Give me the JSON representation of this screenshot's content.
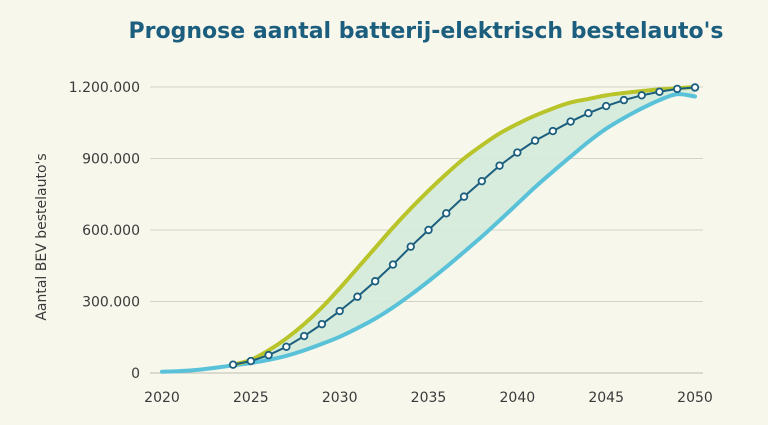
{
  "chart_data": {
    "type": "line",
    "title": "Prognose aantal batterij-elektrisch bestelauto's",
    "xlabel": "",
    "ylabel": "Aantal BEV bestelauto's",
    "xlim": [
      2020,
      2050
    ],
    "ylim": [
      0,
      1200000
    ],
    "xticks": [
      2020,
      2025,
      2030,
      2035,
      2040,
      2045,
      2050
    ],
    "xtick_labels": [
      "2020",
      "2025",
      "2030",
      "2035",
      "2040",
      "2045",
      "2050"
    ],
    "yticks": [
      0,
      300000,
      600000,
      900000,
      1200000
    ],
    "ytick_labels": [
      "0",
      "300.000",
      "600.000",
      "900.000",
      "1.200.000"
    ],
    "grid": "horizontal",
    "legend": "none",
    "band": {
      "upper_series": 0,
      "lower_series": 2,
      "color": "#d4eadc"
    },
    "series": [
      {
        "color": "#b8c42a",
        "marker": "none",
        "x": [
          2024,
          2025,
          2026,
          2027,
          2028,
          2029,
          2030,
          2031,
          2032,
          2033,
          2034,
          2035,
          2036,
          2037,
          2038,
          2039,
          2040,
          2041,
          2042,
          2043,
          2044,
          2045,
          2046,
          2047,
          2048,
          2049,
          2050
        ],
        "y": [
          35000,
          55000,
          95000,
          145000,
          205000,
          275000,
          355000,
          440000,
          525000,
          610000,
          690000,
          765000,
          835000,
          900000,
          955000,
          1005000,
          1045000,
          1080000,
          1110000,
          1135000,
          1150000,
          1165000,
          1175000,
          1183000,
          1190000,
          1195000,
          1200000
        ]
      },
      {
        "color": "#1b5e7e",
        "marker": "circle",
        "x": [
          2024,
          2025,
          2026,
          2027,
          2028,
          2029,
          2030,
          2031,
          2032,
          2033,
          2034,
          2035,
          2036,
          2037,
          2038,
          2039,
          2040,
          2041,
          2042,
          2043,
          2044,
          2045,
          2046,
          2047,
          2048,
          2049,
          2050
        ],
        "y": [
          35000,
          50000,
          75000,
          110000,
          155000,
          205000,
          260000,
          320000,
          385000,
          455000,
          530000,
          600000,
          670000,
          740000,
          805000,
          870000,
          925000,
          975000,
          1015000,
          1055000,
          1090000,
          1120000,
          1145000,
          1165000,
          1180000,
          1192000,
          1198000
        ]
      },
      {
        "color": "#5ac2d8",
        "marker": "none",
        "x": [
          2020,
          2021,
          2022,
          2023,
          2024,
          2025,
          2026,
          2027,
          2028,
          2029,
          2030,
          2031,
          2032,
          2033,
          2034,
          2035,
          2036,
          2037,
          2038,
          2039,
          2040,
          2041,
          2042,
          2043,
          2044,
          2045,
          2046,
          2047,
          2048,
          2049,
          2050
        ],
        "y": [
          5000,
          8000,
          13000,
          22000,
          32000,
          42000,
          55000,
          72000,
          95000,
          122000,
          152000,
          188000,
          228000,
          275000,
          328000,
          385000,
          445000,
          508000,
          572000,
          640000,
          710000,
          780000,
          845000,
          908000,
          970000,
          1025000,
          1070000,
          1110000,
          1145000,
          1170000,
          1160000
        ]
      }
    ]
  }
}
